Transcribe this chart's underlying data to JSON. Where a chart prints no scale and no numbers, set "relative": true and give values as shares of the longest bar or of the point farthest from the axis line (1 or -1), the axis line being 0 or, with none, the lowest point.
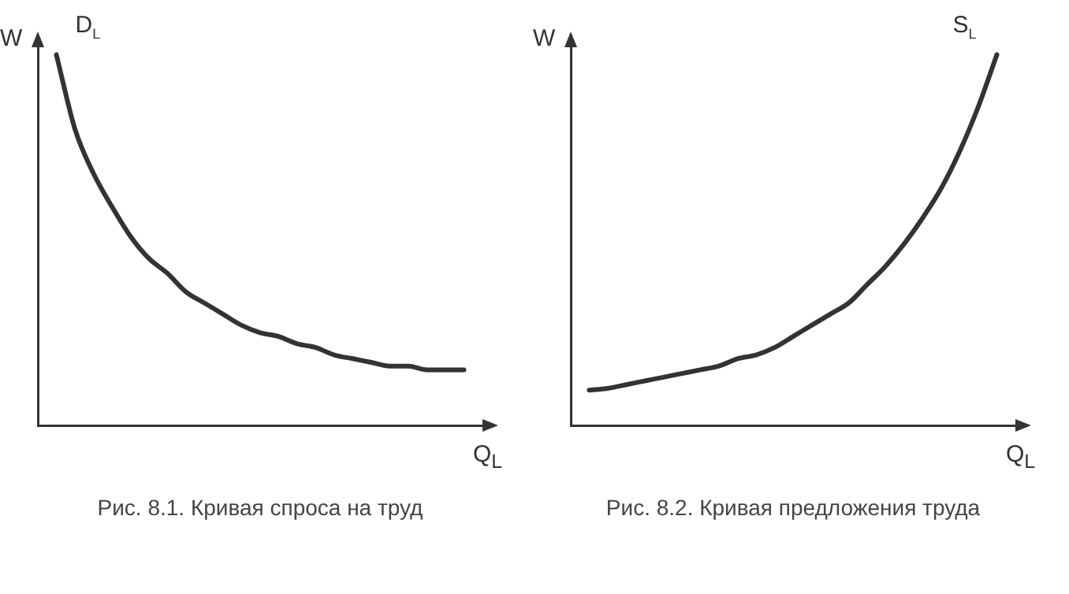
{
  "chart_data": [
    {
      "type": "line",
      "relative": true,
      "xlabel": "Q$_{L}$",
      "ylabel": "W",
      "annotations": [
        "Рис. 8.1. Кривая спроса на труд"
      ],
      "categories": [
        null,
        null,
        null,
        null,
        null,
        null,
        null,
        null,
        null,
        null,
        null,
        null,
        null,
        null,
        null,
        null,
        null,
        null,
        null,
        null,
        null,
        null,
        null,
        null,
        null
      ],
      "series": [
        {
          "name": "D$_{L}$",
          "color": "#333333",
          "values": [
            null,
            1.0,
            0.8,
            0.68,
            0.59,
            0.51,
            0.45,
            0.41,
            0.36,
            0.33,
            0.3,
            0.27,
            0.25,
            0.24,
            0.22,
            0.21,
            0.19,
            0.18,
            0.17,
            0.16,
            0.16,
            0.15,
            0.15,
            0.15,
            null
          ]
        }
      ]
    },
    {
      "type": "line",
      "relative": true,
      "xlabel": "Q$_{L}$",
      "ylabel": "W",
      "annotations": [
        "Рис. 8.2. Кривая предложения труда"
      ],
      "categories": [
        null,
        null,
        null,
        null,
        null,
        null,
        null,
        null,
        null,
        null,
        null,
        null,
        null,
        null,
        null,
        null,
        null,
        null,
        null,
        null,
        null,
        null,
        null,
        null,
        null
      ],
      "series": [
        {
          "name": "S$_{L}$",
          "color": "#333333",
          "values": [
            null,
            0.095,
            0.1,
            0.11,
            0.12,
            0.13,
            0.14,
            0.15,
            0.16,
            0.18,
            0.19,
            0.21,
            0.24,
            0.27,
            0.3,
            0.33,
            0.38,
            0.43,
            0.49,
            0.56,
            0.64,
            0.74,
            0.86,
            1.0,
            null
          ]
        }
      ]
    }
  ]
}
